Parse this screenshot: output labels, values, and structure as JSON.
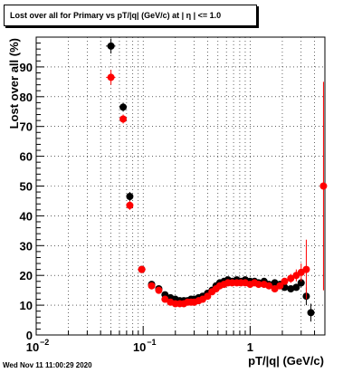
{
  "title": "Lost over all for Primary vs pT/|q| (GeV/c) at |  η | <= 1.0",
  "footer": "Wed Nov 11 11:00:29 2020",
  "colors": {
    "series_black": "#000000",
    "series_red": "#ff0000",
    "grid": "#000000"
  },
  "chart_data": {
    "type": "scatter",
    "title": "Lost over all for Primary vs pT/|q| (GeV/c) at |  η | <= 1.0",
    "xlabel": "pT/|q| (GeV/c)",
    "ylabel": "Lost over all (%)",
    "xscale": "log",
    "xlim": [
      0.01,
      5.0
    ],
    "ylim": [
      0,
      100
    ],
    "grid": true,
    "x_ticks": [
      {
        "value": 0.01,
        "label": "10",
        "exp": "−2"
      },
      {
        "value": 0.1,
        "label": "10",
        "exp": "−1"
      },
      {
        "value": 1,
        "label": "1",
        "exp": ""
      }
    ],
    "y_ticks": [
      0,
      10,
      20,
      30,
      40,
      50,
      60,
      70,
      80,
      90
    ],
    "series": [
      {
        "color": "#000000",
        "points": [
          {
            "x": 0.05,
            "y": 97.0,
            "xerr": 0.005,
            "yerr": 2.5
          },
          {
            "x": 0.065,
            "y": 76.5,
            "xerr": 0,
            "yerr": 1.5
          },
          {
            "x": 0.075,
            "y": 46.5,
            "xerr": 0,
            "yerr": 1.5
          },
          {
            "x": 0.097,
            "y": 22.0,
            "xerr": 0,
            "yerr": 0
          },
          {
            "x": 0.12,
            "y": 17.0,
            "xerr": 0,
            "yerr": 0
          },
          {
            "x": 0.14,
            "y": 15.5,
            "xerr": 0,
            "yerr": 0
          },
          {
            "x": 0.16,
            "y": 13.5,
            "xerr": 0,
            "yerr": 0
          },
          {
            "x": 0.18,
            "y": 12.5,
            "xerr": 0,
            "yerr": 0
          },
          {
            "x": 0.2,
            "y": 12.0,
            "xerr": 0,
            "yerr": 0
          },
          {
            "x": 0.22,
            "y": 11.5,
            "xerr": 0,
            "yerr": 0
          },
          {
            "x": 0.24,
            "y": 11.5,
            "xerr": 0,
            "yerr": 0
          },
          {
            "x": 0.26,
            "y": 11.5,
            "xerr": 0,
            "yerr": 0
          },
          {
            "x": 0.28,
            "y": 12.0,
            "xerr": 0,
            "yerr": 0
          },
          {
            "x": 0.3,
            "y": 12.0,
            "xerr": 0,
            "yerr": 0
          },
          {
            "x": 0.33,
            "y": 12.5,
            "xerr": 0,
            "yerr": 0
          },
          {
            "x": 0.36,
            "y": 13.0,
            "xerr": 0,
            "yerr": 0
          },
          {
            "x": 0.4,
            "y": 14.0,
            "xerr": 0,
            "yerr": 0
          },
          {
            "x": 0.44,
            "y": 15.0,
            "xerr": 0,
            "yerr": 0
          },
          {
            "x": 0.48,
            "y": 16.5,
            "xerr": 0,
            "yerr": 0
          },
          {
            "x": 0.52,
            "y": 17.5,
            "xerr": 0,
            "yerr": 0
          },
          {
            "x": 0.57,
            "y": 18.0,
            "xerr": 0,
            "yerr": 0
          },
          {
            "x": 0.62,
            "y": 18.5,
            "xerr": 0,
            "yerr": 0
          },
          {
            "x": 0.68,
            "y": 18.0,
            "xerr": 0,
            "yerr": 0
          },
          {
            "x": 0.75,
            "y": 18.5,
            "xerr": 0,
            "yerr": 0
          },
          {
            "x": 0.82,
            "y": 18.0,
            "xerr": 0,
            "yerr": 0
          },
          {
            "x": 0.9,
            "y": 18.5,
            "xerr": 0,
            "yerr": 0
          },
          {
            "x": 1.0,
            "y": 18.0,
            "xerr": 0,
            "yerr": 0
          },
          {
            "x": 1.1,
            "y": 18.0,
            "xerr": 0,
            "yerr": 0
          },
          {
            "x": 1.2,
            "y": 17.5,
            "xerr": 0,
            "yerr": 0
          },
          {
            "x": 1.35,
            "y": 18.0,
            "xerr": 0,
            "yerr": 0
          },
          {
            "x": 1.5,
            "y": 17.0,
            "xerr": 0,
            "yerr": 0
          },
          {
            "x": 1.7,
            "y": 17.5,
            "xerr": 0,
            "yerr": 0
          },
          {
            "x": 1.9,
            "y": 17.0,
            "xerr": 0,
            "yerr": 0
          },
          {
            "x": 2.1,
            "y": 16.0,
            "xerr": 0,
            "yerr": 0
          },
          {
            "x": 2.4,
            "y": 15.5,
            "xerr": 0,
            "yerr": 0
          },
          {
            "x": 2.7,
            "y": 16.0,
            "xerr": 0,
            "yerr": 0
          },
          {
            "x": 3.0,
            "y": 17.5,
            "xerr": 0,
            "yerr": 1.5
          },
          {
            "x": 3.35,
            "y": 13.0,
            "xerr": 0.15,
            "yerr": 3.0
          },
          {
            "x": 3.7,
            "y": 7.5,
            "xerr": 0.15,
            "yerr": 3.0
          }
        ]
      },
      {
        "color": "#ff0000",
        "points": [
          {
            "x": 0.05,
            "y": 86.5,
            "xerr": 0.005,
            "yerr": 2.5
          },
          {
            "x": 0.065,
            "y": 72.5,
            "xerr": 0,
            "yerr": 1.5
          },
          {
            "x": 0.075,
            "y": 43.5,
            "xerr": 0,
            "yerr": 1.5
          },
          {
            "x": 0.097,
            "y": 22.0,
            "xerr": 0.008,
            "yerr": 0
          },
          {
            "x": 0.12,
            "y": 16.5,
            "xerr": 0,
            "yerr": 0
          },
          {
            "x": 0.14,
            "y": 15.0,
            "xerr": 0,
            "yerr": 0
          },
          {
            "x": 0.16,
            "y": 12.0,
            "xerr": 0,
            "yerr": 0
          },
          {
            "x": 0.18,
            "y": 11.0,
            "xerr": 0,
            "yerr": 0
          },
          {
            "x": 0.2,
            "y": 10.5,
            "xerr": 0,
            "yerr": 0
          },
          {
            "x": 0.22,
            "y": 10.5,
            "xerr": 0,
            "yerr": 0
          },
          {
            "x": 0.24,
            "y": 10.5,
            "xerr": 0,
            "yerr": 0
          },
          {
            "x": 0.26,
            "y": 11.0,
            "xerr": 0,
            "yerr": 0
          },
          {
            "x": 0.28,
            "y": 11.0,
            "xerr": 0,
            "yerr": 0
          },
          {
            "x": 0.3,
            "y": 11.0,
            "xerr": 0,
            "yerr": 0
          },
          {
            "x": 0.33,
            "y": 11.5,
            "xerr": 0,
            "yerr": 0
          },
          {
            "x": 0.36,
            "y": 12.0,
            "xerr": 0,
            "yerr": 0
          },
          {
            "x": 0.4,
            "y": 13.0,
            "xerr": 0,
            "yerr": 0
          },
          {
            "x": 0.44,
            "y": 14.5,
            "xerr": 0,
            "yerr": 0
          },
          {
            "x": 0.48,
            "y": 15.5,
            "xerr": 0,
            "yerr": 0
          },
          {
            "x": 0.52,
            "y": 16.5,
            "xerr": 0,
            "yerr": 0
          },
          {
            "x": 0.57,
            "y": 17.0,
            "xerr": 0,
            "yerr": 0
          },
          {
            "x": 0.62,
            "y": 17.5,
            "xerr": 0,
            "yerr": 0
          },
          {
            "x": 0.68,
            "y": 17.5,
            "xerr": 0,
            "yerr": 0
          },
          {
            "x": 0.75,
            "y": 17.5,
            "xerr": 0,
            "yerr": 0
          },
          {
            "x": 0.82,
            "y": 17.5,
            "xerr": 0,
            "yerr": 0
          },
          {
            "x": 0.9,
            "y": 17.5,
            "xerr": 0,
            "yerr": 0
          },
          {
            "x": 1.0,
            "y": 17.0,
            "xerr": 0,
            "yerr": 0
          },
          {
            "x": 1.1,
            "y": 17.5,
            "xerr": 0,
            "yerr": 0
          },
          {
            "x": 1.2,
            "y": 17.0,
            "xerr": 0,
            "yerr": 0
          },
          {
            "x": 1.35,
            "y": 17.0,
            "xerr": 0,
            "yerr": 0
          },
          {
            "x": 1.5,
            "y": 16.5,
            "xerr": 0,
            "yerr": 0
          },
          {
            "x": 1.7,
            "y": 15.5,
            "xerr": 0,
            "yerr": 0
          },
          {
            "x": 1.9,
            "y": 16.5,
            "xerr": 0,
            "yerr": 0
          },
          {
            "x": 2.1,
            "y": 18.0,
            "xerr": 0,
            "yerr": 0
          },
          {
            "x": 2.4,
            "y": 19.0,
            "xerr": 0,
            "yerr": 1.5
          },
          {
            "x": 2.7,
            "y": 20.0,
            "xerr": 0,
            "yerr": 2.0
          },
          {
            "x": 3.0,
            "y": 21.0,
            "xerr": 0,
            "yerr": 3.0
          },
          {
            "x": 3.35,
            "y": 22.0,
            "xerr": 0.15,
            "yerr": 10.0
          },
          {
            "x": 4.85,
            "y": 50.0,
            "xerr": 0,
            "yerr": 35.0
          }
        ]
      }
    ]
  }
}
